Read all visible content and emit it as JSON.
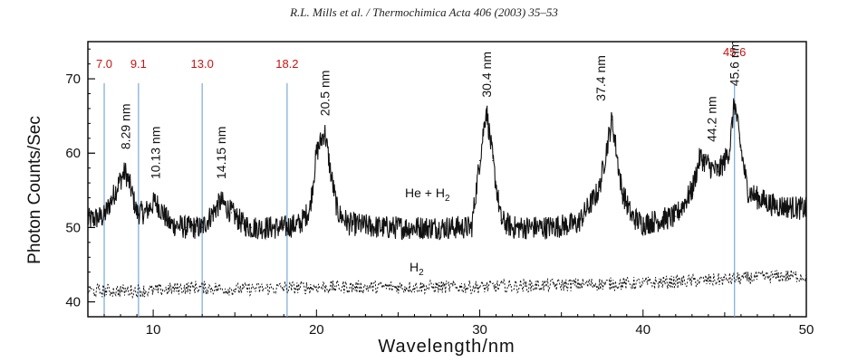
{
  "header": "R.L. Mills et al. / Thermochimica Acta 406 (2003) 35–53",
  "chart_data": {
    "type": "line",
    "title": "",
    "xlabel": "Wavelength/nm",
    "ylabel": "Photon Counts/Sec",
    "xlim": [
      6,
      50
    ],
    "ylim": [
      38,
      75
    ],
    "x_ticks": [
      10,
      20,
      30,
      40,
      50
    ],
    "y_ticks": [
      40,
      50,
      60,
      70
    ],
    "grid": false,
    "series": [
      {
        "name": "He + H2",
        "label_base": "He + H",
        "label_sub": "2",
        "style": "solid",
        "x": [
          6,
          7,
          7.5,
          8,
          8.29,
          8.6,
          9,
          9.5,
          10.13,
          10.6,
          11,
          12,
          13,
          13.5,
          14.15,
          14.8,
          15.5,
          16,
          17,
          18,
          19,
          19.6,
          20,
          20.5,
          20.9,
          21.3,
          22,
          24,
          26,
          28,
          29.5,
          30,
          30.4,
          30.8,
          31.3,
          32,
          34,
          36,
          37.3,
          38.1,
          38.7,
          39.3,
          40,
          42,
          43,
          43.5,
          44.2,
          44.6,
          45,
          45.3,
          45.6,
          45.9,
          46.4,
          47,
          48,
          50
        ],
        "y": [
          51,
          51.5,
          54,
          56.5,
          57.5,
          55.5,
          52,
          52,
          53.5,
          52,
          50.5,
          50,
          50,
          51.5,
          53.5,
          52,
          50.5,
          50,
          50,
          50,
          50.5,
          52.5,
          60,
          63,
          57,
          52,
          50.5,
          50,
          50,
          50,
          50,
          59,
          66,
          59,
          51,
          50,
          50,
          50.5,
          55,
          64.5,
          55,
          51.5,
          50.5,
          51.5,
          55,
          59.5,
          58,
          57.5,
          59,
          60.5,
          67,
          62,
          55,
          54,
          53,
          52.5
        ]
      },
      {
        "name": "H2",
        "label_base": "H",
        "label_sub": "2",
        "style": "dotted",
        "x": [
          6,
          10,
          12.5,
          15,
          20,
          25,
          30,
          35,
          40,
          45,
          48,
          50
        ],
        "y": [
          41.5,
          41.5,
          42,
          41.7,
          42,
          42,
          42,
          42.3,
          42.5,
          43,
          43.4,
          43.5
        ]
      }
    ],
    "peak_labels": [
      {
        "x": 8.29,
        "text": "8.29 nm"
      },
      {
        "x": 10.13,
        "text": "10.13 nm"
      },
      {
        "x": 14.15,
        "text": "14.15 nm"
      },
      {
        "x": 20.5,
        "text": "20.5 nm"
      },
      {
        "x": 30.4,
        "text": "30.4 nm"
      },
      {
        "x": 37.4,
        "text": "37.4 nm"
      },
      {
        "x": 44.2,
        "text": "44.2 nm"
      },
      {
        "x": 45.6,
        "text": "45.6 nm"
      }
    ],
    "annotation_lines": [
      {
        "x": 7.0,
        "label": "7.0"
      },
      {
        "x": 9.1,
        "label": "9.1"
      },
      {
        "x": 13.0,
        "label": "13.0"
      },
      {
        "x": 18.2,
        "label": "18.2"
      },
      {
        "x": 45.6,
        "label": "45.6"
      }
    ],
    "colors": {
      "annotation_line": "#7aaad8",
      "annotation_text": "#cc1111",
      "series": "#111111"
    }
  }
}
